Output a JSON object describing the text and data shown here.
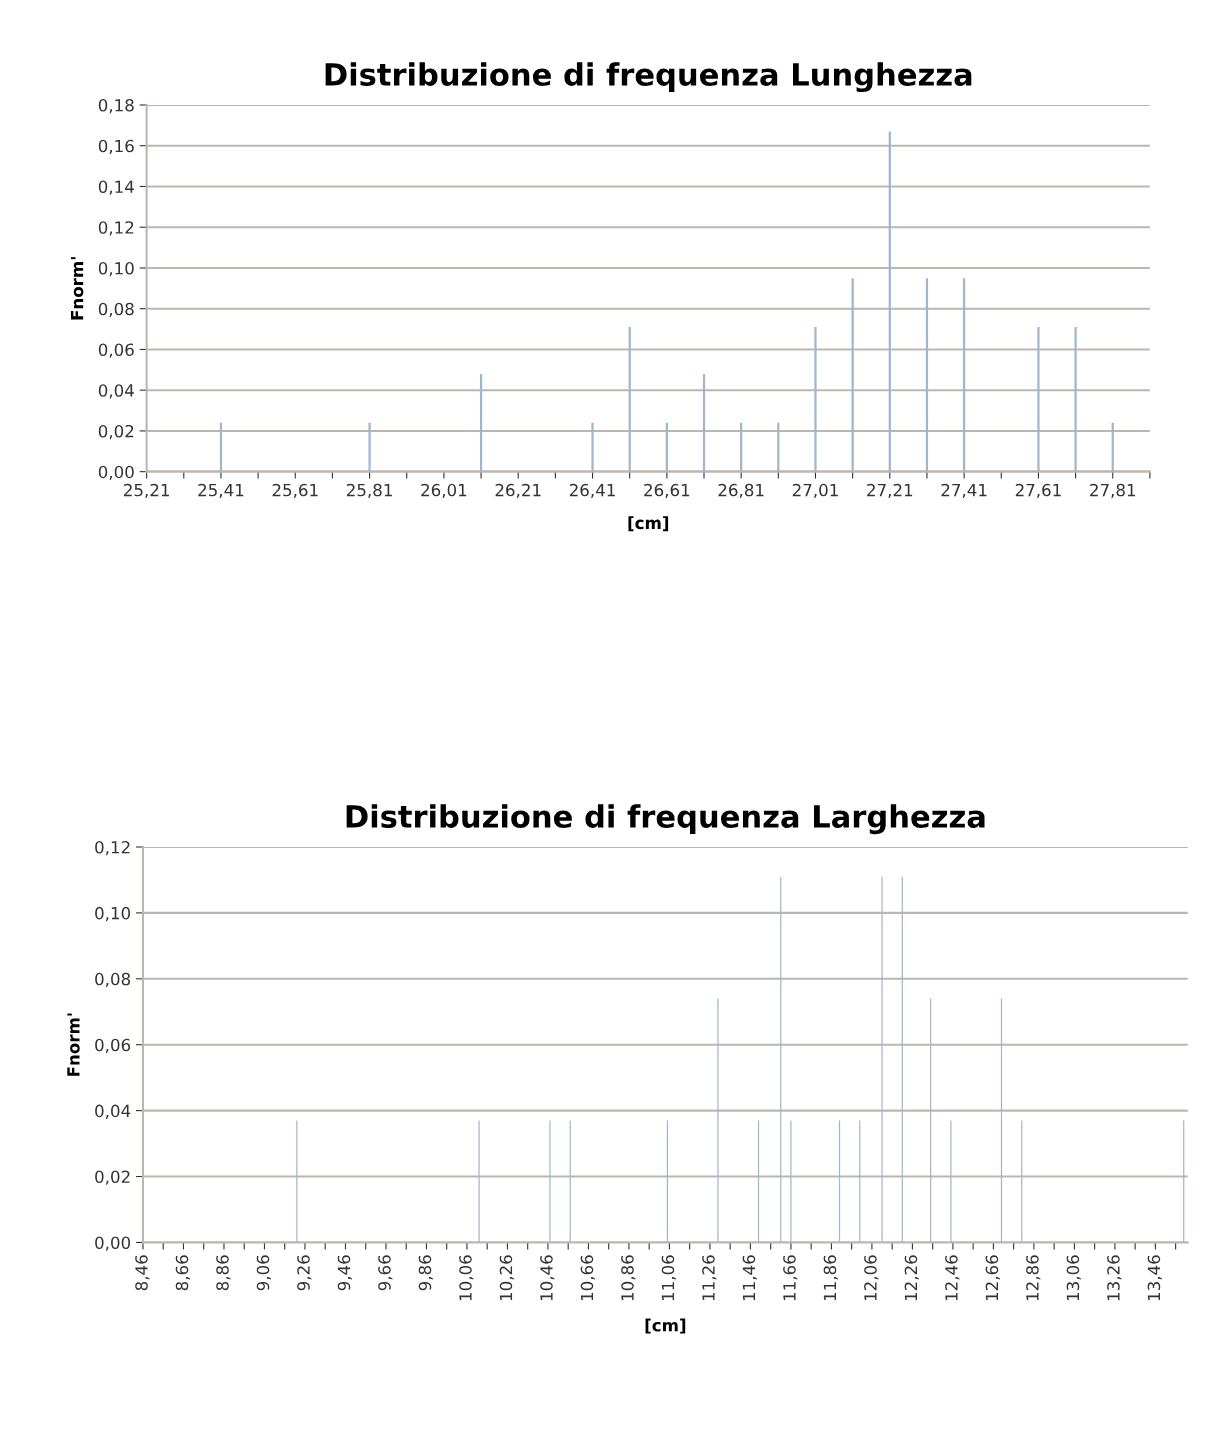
{
  "chart_data": [
    {
      "type": "bar",
      "title": "Distribuzione di frequenza Lunghezza",
      "xlabel": "[cm]",
      "ylabel": "Fnorm'",
      "grid": "y",
      "x": [
        25.41,
        25.81,
        26.11,
        26.41,
        26.51,
        26.61,
        26.71,
        26.81,
        26.91,
        27.01,
        27.11,
        27.21,
        27.31,
        27.41,
        27.61,
        27.71,
        27.81
      ],
      "values": [
        0.024,
        0.024,
        0.048,
        0.024,
        0.071,
        0.024,
        0.048,
        0.024,
        0.024,
        0.071,
        0.095,
        0.167,
        0.095,
        0.095,
        0.071,
        0.071,
        0.024
      ],
      "color": "#9fb6cc",
      "xlim": [
        25.21,
        27.91
      ],
      "ylim": [
        0,
        0.18
      ],
      "yticks": [
        {
          "value": 0,
          "label": "0,00"
        },
        {
          "value": 0.02,
          "label": "0,02"
        },
        {
          "value": 0.04,
          "label": "0,04"
        },
        {
          "value": 0.06,
          "label": "0,06"
        },
        {
          "value": 0.08,
          "label": "0,08"
        },
        {
          "value": 0.1,
          "label": "0,10"
        },
        {
          "value": 0.12,
          "label": "0,12"
        },
        {
          "value": 0.14,
          "label": "0,14"
        },
        {
          "value": 0.16,
          "label": "0,16"
        },
        {
          "value": 0.18,
          "label": "0,18"
        }
      ],
      "xticks": [
        {
          "value": 25.21,
          "label": "25,21"
        },
        {
          "value": 25.31,
          "label": null
        },
        {
          "value": 25.41,
          "label": "25,41"
        },
        {
          "value": 25.51,
          "label": null
        },
        {
          "value": 25.61,
          "label": "25,61"
        },
        {
          "value": 25.71,
          "label": null
        },
        {
          "value": 25.81,
          "label": "25,81"
        },
        {
          "value": 25.91,
          "label": null
        },
        {
          "value": 26.01,
          "label": "26,01"
        },
        {
          "value": 26.11,
          "label": null
        },
        {
          "value": 26.21,
          "label": "26,21"
        },
        {
          "value": 26.31,
          "label": null
        },
        {
          "value": 26.41,
          "label": "26,41"
        },
        {
          "value": 26.51,
          "label": null
        },
        {
          "value": 26.61,
          "label": "26,61"
        },
        {
          "value": 26.71,
          "label": null
        },
        {
          "value": 26.81,
          "label": "26,81"
        },
        {
          "value": 26.91,
          "label": null
        },
        {
          "value": 27.01,
          "label": "27,01"
        },
        {
          "value": 27.11,
          "label": null
        },
        {
          "value": 27.21,
          "label": "27,21"
        },
        {
          "value": 27.31,
          "label": null
        },
        {
          "value": 27.41,
          "label": "27,41"
        },
        {
          "value": 27.51,
          "label": null
        },
        {
          "value": 27.61,
          "label": "27,61"
        },
        {
          "value": 27.71,
          "label": null
        },
        {
          "value": 27.81,
          "label": "27,81"
        },
        {
          "value": 27.91,
          "label": null
        }
      ]
    },
    {
      "type": "bar",
      "title": "Distribuzione di frequenza Larghezza",
      "xlabel": "[cm]",
      "ylabel": "Fnorm'",
      "grid": "y",
      "x": [
        9.22,
        10.12,
        10.47,
        10.57,
        11.05,
        11.3,
        11.5,
        11.61,
        11.66,
        11.9,
        12.0,
        12.11,
        12.21,
        12.35,
        12.45,
        12.7,
        12.8,
        13.6
      ],
      "values": [
        0.037,
        0.037,
        0.037,
        0.037,
        0.037,
        0.074,
        0.037,
        0.111,
        0.037,
        0.037,
        0.037,
        0.111,
        0.111,
        0.074,
        0.037,
        0.074,
        0.037,
        0.037
      ],
      "color": "#9fb6cc",
      "xlim": [
        8.46,
        13.62
      ],
      "ylim": [
        0,
        0.12
      ],
      "yticks": [
        {
          "value": 0,
          "label": "0,00"
        },
        {
          "value": 0.02,
          "label": "0,02"
        },
        {
          "value": 0.04,
          "label": "0,04"
        },
        {
          "value": 0.06,
          "label": "0,06"
        },
        {
          "value": 0.08,
          "label": "0,08"
        },
        {
          "value": 0.1,
          "label": "0,10"
        },
        {
          "value": 0.12,
          "label": "0,12"
        }
      ],
      "xticks": [
        {
          "value": 8.46,
          "label": "8,46"
        },
        {
          "value": 8.56,
          "label": null
        },
        {
          "value": 8.66,
          "label": "8,66"
        },
        {
          "value": 8.76,
          "label": null
        },
        {
          "value": 8.86,
          "label": "8,86"
        },
        {
          "value": 8.96,
          "label": null
        },
        {
          "value": 9.06,
          "label": "9,06"
        },
        {
          "value": 9.16,
          "label": null
        },
        {
          "value": 9.26,
          "label": "9,26"
        },
        {
          "value": 9.36,
          "label": null
        },
        {
          "value": 9.46,
          "label": "9,46"
        },
        {
          "value": 9.56,
          "label": null
        },
        {
          "value": 9.66,
          "label": "9,66"
        },
        {
          "value": 9.76,
          "label": null
        },
        {
          "value": 9.86,
          "label": "9,86"
        },
        {
          "value": 9.96,
          "label": null
        },
        {
          "value": 10.06,
          "label": "10,06"
        },
        {
          "value": 10.16,
          "label": null
        },
        {
          "value": 10.26,
          "label": "10,26"
        },
        {
          "value": 10.36,
          "label": null
        },
        {
          "value": 10.46,
          "label": "10,46"
        },
        {
          "value": 10.56,
          "label": null
        },
        {
          "value": 10.66,
          "label": "10,66"
        },
        {
          "value": 10.76,
          "label": null
        },
        {
          "value": 10.86,
          "label": "10,86"
        },
        {
          "value": 10.96,
          "label": null
        },
        {
          "value": 11.06,
          "label": "11,06"
        },
        {
          "value": 11.16,
          "label": null
        },
        {
          "value": 11.26,
          "label": "11,26"
        },
        {
          "value": 11.36,
          "label": null
        },
        {
          "value": 11.46,
          "label": "11,46"
        },
        {
          "value": 11.56,
          "label": null
        },
        {
          "value": 11.66,
          "label": "11,66"
        },
        {
          "value": 11.76,
          "label": null
        },
        {
          "value": 11.86,
          "label": "11,86"
        },
        {
          "value": 11.96,
          "label": null
        },
        {
          "value": 12.06,
          "label": "12,06"
        },
        {
          "value": 12.16,
          "label": null
        },
        {
          "value": 12.26,
          "label": "12,26"
        },
        {
          "value": 12.36,
          "label": null
        },
        {
          "value": 12.46,
          "label": "12,46"
        },
        {
          "value": 12.56,
          "label": null
        },
        {
          "value": 12.66,
          "label": "12,66"
        },
        {
          "value": 12.76,
          "label": null
        },
        {
          "value": 12.86,
          "label": "12,86"
        },
        {
          "value": 12.96,
          "label": null
        },
        {
          "value": 13.06,
          "label": "13,06"
        },
        {
          "value": 13.16,
          "label": null
        },
        {
          "value": 13.26,
          "label": "13,26"
        },
        {
          "value": 13.36,
          "label": null
        },
        {
          "value": 13.46,
          "label": "13,46"
        },
        {
          "value": 13.56,
          "label": null
        }
      ]
    }
  ]
}
